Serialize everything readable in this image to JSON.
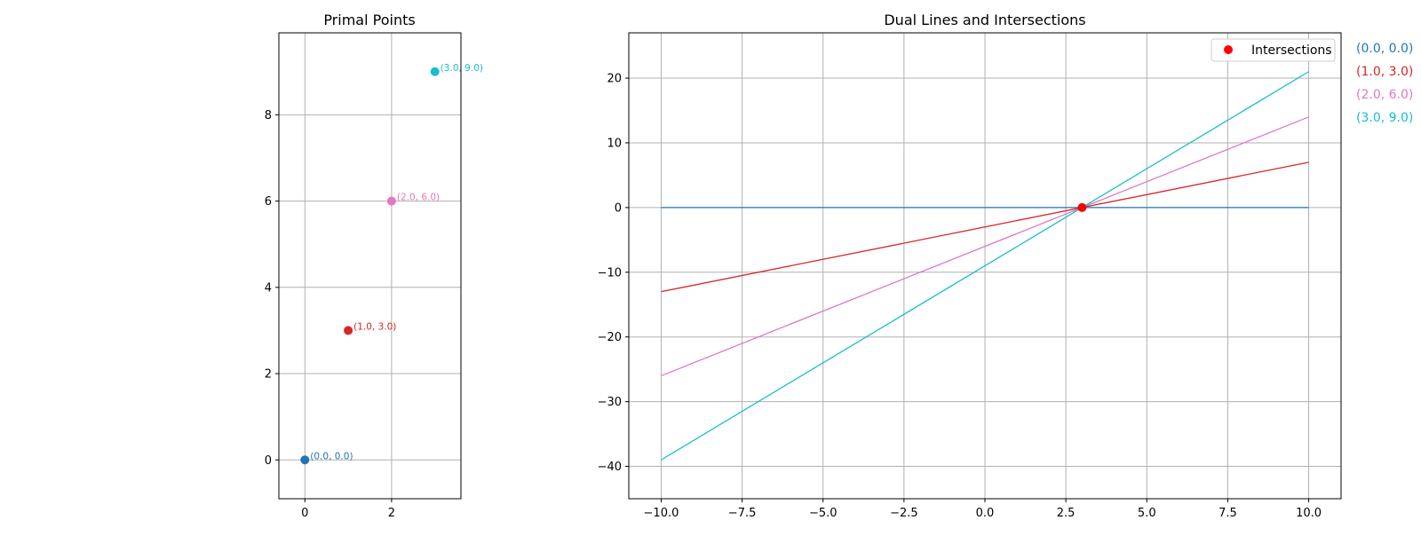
{
  "chart_data": [
    {
      "type": "scatter",
      "title": "Primal Points",
      "xlabel": "",
      "ylabel": "",
      "xlim": [
        -0.6,
        3.6
      ],
      "ylim": [
        -0.9,
        9.9
      ],
      "xticks": [
        0,
        2
      ],
      "xtick_labels": [
        "0",
        "2"
      ],
      "yticks": [
        0,
        2,
        4,
        6,
        8
      ],
      "ytick_labels": [
        "0",
        "2",
        "4",
        "6",
        "8"
      ],
      "grid": true,
      "points": [
        {
          "x": 0,
          "y": 0,
          "label": "(0.0, 0.0)",
          "color": "#1f77b4"
        },
        {
          "x": 1,
          "y": 3,
          "label": "(1.0, 3.0)",
          "color": "#d62728"
        },
        {
          "x": 2,
          "y": 6,
          "label": "(2.0, 6.0)",
          "color": "#e377c2"
        },
        {
          "x": 3,
          "y": 9,
          "label": "(3.0, 9.0)",
          "color": "#17becf"
        }
      ]
    },
    {
      "type": "line",
      "title": "Dual Lines and Intersections",
      "xlabel": "",
      "ylabel": "",
      "xlim": [
        -11,
        11
      ],
      "ylim": [
        -45,
        27
      ],
      "xticks": [
        -10,
        -7.5,
        -5,
        -2.5,
        0,
        2.5,
        5,
        7.5,
        10
      ],
      "xtick_labels": [
        "−10.0",
        "−7.5",
        "−5.0",
        "−2.5",
        "0.0",
        "2.5",
        "5.0",
        "7.5",
        "10.0"
      ],
      "yticks": [
        -40,
        -30,
        -20,
        -10,
        0,
        10,
        20
      ],
      "ytick_labels": [
        "−40",
        "−30",
        "−20",
        "−10",
        "0",
        "10",
        "20"
      ],
      "grid": true,
      "legend": {
        "location": "top-right",
        "entries": [
          {
            "label": "Intersections",
            "color": "#ff0000",
            "marker": "circle"
          }
        ]
      },
      "series": [
        {
          "name": "(0.0, 0.0)",
          "color": "#1f77b4",
          "x": [
            -10,
            10
          ],
          "y": [
            0,
            0
          ]
        },
        {
          "name": "(1.0, 3.0)",
          "color": "#d62728",
          "x": [
            -10,
            10
          ],
          "y": [
            -13,
            7
          ]
        },
        {
          "name": "(2.0, 6.0)",
          "color": "#e377c2",
          "x": [
            -10,
            10
          ],
          "y": [
            -26,
            14
          ]
        },
        {
          "name": "(3.0, 9.0)",
          "color": "#17becf",
          "x": [
            -10,
            10
          ],
          "y": [
            -39,
            21
          ]
        }
      ],
      "intersections": [
        {
          "x": 3,
          "y": 0
        }
      ],
      "side_labels": [
        {
          "text": "(0.0, 0.0)",
          "color": "#1f77b4"
        },
        {
          "text": "(1.0, 3.0)",
          "color": "#d62728"
        },
        {
          "text": "(2.0, 6.0)",
          "color": "#e377c2"
        },
        {
          "text": "(3.0, 9.0)",
          "color": "#17becf"
        }
      ]
    }
  ]
}
